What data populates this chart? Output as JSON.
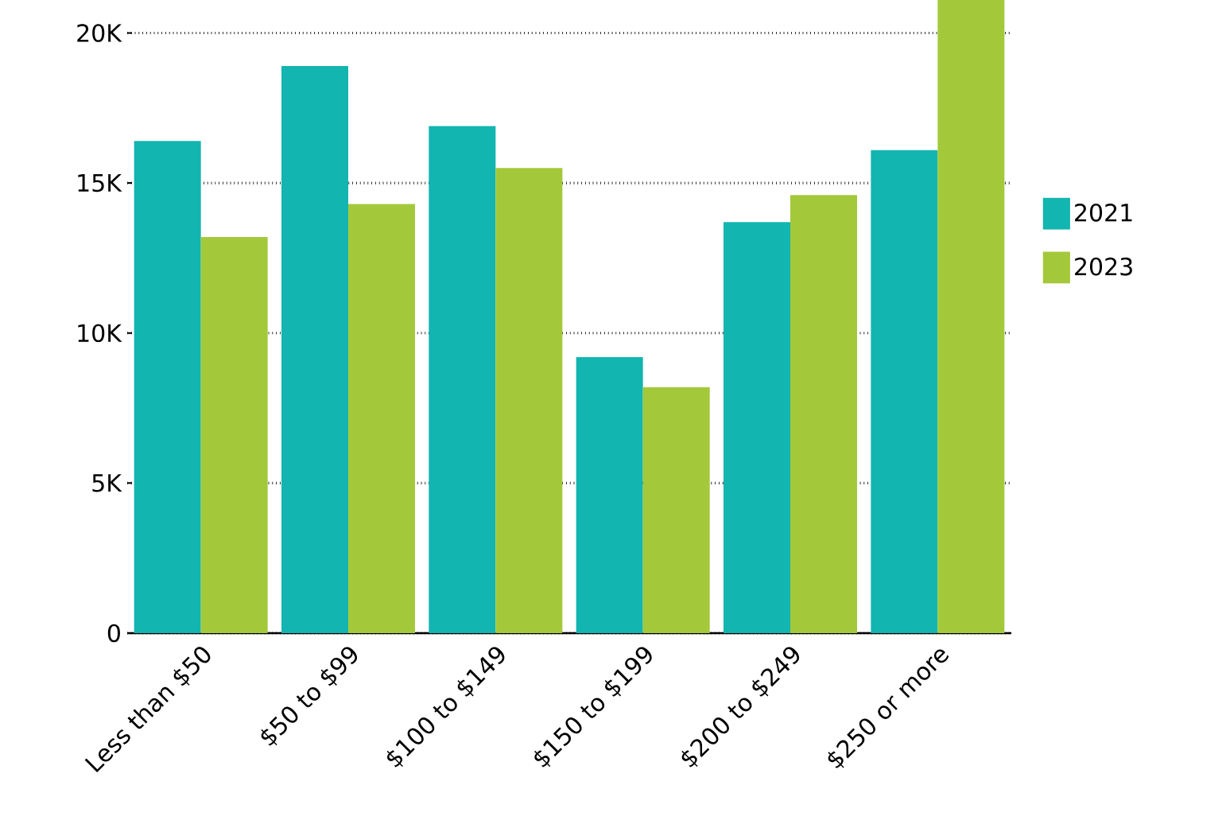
{
  "chart_data": {
    "type": "bar",
    "categories": [
      "Less than $50",
      "$50 to $99",
      "$100 to $149",
      "$150 to $199",
      "$200 to $249",
      "$250 or more"
    ],
    "series": [
      {
        "name": "2021",
        "color": "#12b5b0",
        "values": [
          16400,
          18900,
          16900,
          9200,
          13700,
          16100
        ]
      },
      {
        "name": "2023",
        "color": "#a3c93a",
        "values": [
          13200,
          14300,
          15500,
          8200,
          14600,
          21100
        ]
      }
    ],
    "ylim": [
      0,
      21100
    ],
    "yticks": [
      {
        "value": 0,
        "label": "0"
      },
      {
        "value": 5000,
        "label": "5K"
      },
      {
        "value": 10000,
        "label": "10K"
      },
      {
        "value": 15000,
        "label": "15K"
      },
      {
        "value": 20000,
        "label": "20K"
      }
    ],
    "grid": "y",
    "legend": "right"
  }
}
